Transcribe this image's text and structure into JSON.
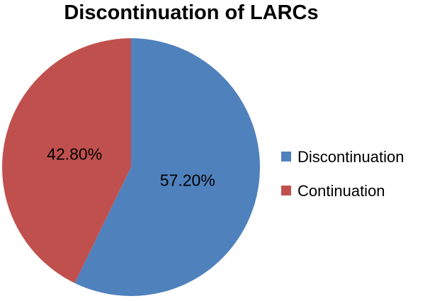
{
  "chart_data": {
    "type": "pie",
    "title": "Discontinuation of LARCs",
    "slices": [
      {
        "label": "Discontinuation",
        "value": 57.2,
        "display": "57.20%",
        "color": "#4F81BD"
      },
      {
        "label": "Continuation",
        "value": 42.8,
        "display": "42.80%",
        "color": "#C0504D"
      }
    ],
    "start_angle_deg": 0,
    "direction": "clockwise",
    "legend_position": "right"
  }
}
